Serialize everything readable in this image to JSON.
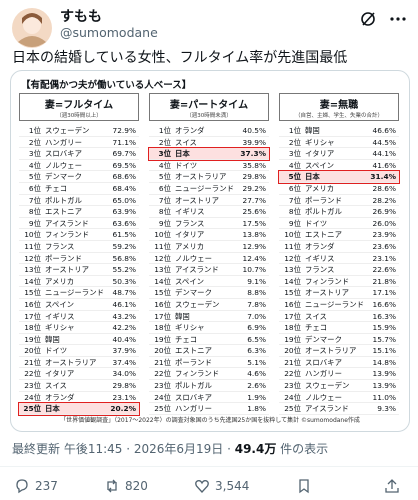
{
  "author": {
    "name": "すもも",
    "handle": "@sumomodane"
  },
  "tweet": {
    "text": "日本の結婚している女性、フルタイム率が先進国最低"
  },
  "image": {
    "basis": "【有配偶かつ夫が働いている人ベース】",
    "tables": [
      {
        "title": "妻=フルタイム",
        "subtitle": "（週30時間以上）",
        "rows": [
          {
            "rank": "1位",
            "country": "スウェーデン",
            "value": "72.9%"
          },
          {
            "rank": "2位",
            "country": "ハンガリー",
            "value": "71.1%"
          },
          {
            "rank": "3位",
            "country": "スロバキア",
            "value": "69.7%"
          },
          {
            "rank": "4位",
            "country": "ノルウェー",
            "value": "69.5%"
          },
          {
            "rank": "5位",
            "country": "デンマーク",
            "value": "68.6%"
          },
          {
            "rank": "6位",
            "country": "チェコ",
            "value": "68.4%"
          },
          {
            "rank": "7位",
            "country": "ポルトガル",
            "value": "65.0%"
          },
          {
            "rank": "8位",
            "country": "エストニア",
            "value": "63.9%"
          },
          {
            "rank": "9位",
            "country": "アイスランド",
            "value": "63.6%"
          },
          {
            "rank": "10位",
            "country": "フィンランド",
            "value": "61.5%"
          },
          {
            "rank": "11位",
            "country": "フランス",
            "value": "59.2%"
          },
          {
            "rank": "12位",
            "country": "ポーランド",
            "value": "56.8%"
          },
          {
            "rank": "13位",
            "country": "オーストリア",
            "value": "55.2%"
          },
          {
            "rank": "14位",
            "country": "アメリカ",
            "value": "50.3%"
          },
          {
            "rank": "15位",
            "country": "ニュージーランド",
            "value": "48.7%"
          },
          {
            "rank": "16位",
            "country": "スペイン",
            "value": "46.1%"
          },
          {
            "rank": "17位",
            "country": "イギリス",
            "value": "43.2%"
          },
          {
            "rank": "18位",
            "country": "ギリシャ",
            "value": "42.2%"
          },
          {
            "rank": "19位",
            "country": "韓国",
            "value": "40.4%"
          },
          {
            "rank": "20位",
            "country": "ドイツ",
            "value": "37.9%"
          },
          {
            "rank": "21位",
            "country": "オーストラリア",
            "value": "37.4%"
          },
          {
            "rank": "22位",
            "country": "イタリア",
            "value": "34.0%"
          },
          {
            "rank": "23位",
            "country": "スイス",
            "value": "29.8%"
          },
          {
            "rank": "24位",
            "country": "オランダ",
            "value": "23.1%"
          },
          {
            "rank": "25位",
            "country": "日本",
            "value": "20.2%",
            "highlight": true
          }
        ]
      },
      {
        "title": "妻=パートタイム",
        "subtitle": "（週30時間未満）",
        "rows": [
          {
            "rank": "1位",
            "country": "オランダ",
            "value": "40.5%"
          },
          {
            "rank": "2位",
            "country": "スイス",
            "value": "39.9%"
          },
          {
            "rank": "3位",
            "country": "日本",
            "value": "37.3%",
            "highlight": true
          },
          {
            "rank": "4位",
            "country": "ドイツ",
            "value": "35.8%"
          },
          {
            "rank": "5位",
            "country": "オーストラリア",
            "value": "29.8%"
          },
          {
            "rank": "6位",
            "country": "ニュージーランド",
            "value": "29.2%"
          },
          {
            "rank": "7位",
            "country": "オーストリア",
            "value": "27.7%"
          },
          {
            "rank": "8位",
            "country": "イギリス",
            "value": "25.6%"
          },
          {
            "rank": "9位",
            "country": "フランス",
            "value": "17.5%"
          },
          {
            "rank": "10位",
            "country": "イタリア",
            "value": "13.8%"
          },
          {
            "rank": "11位",
            "country": "アメリカ",
            "value": "12.9%"
          },
          {
            "rank": "12位",
            "country": "ノルウェー",
            "value": "12.4%"
          },
          {
            "rank": "13位",
            "country": "アイスランド",
            "value": "10.7%"
          },
          {
            "rank": "14位",
            "country": "スペイン",
            "value": "9.1%"
          },
          {
            "rank": "15位",
            "country": "デンマーク",
            "value": "8.8%"
          },
          {
            "rank": "16位",
            "country": "スウェーデン",
            "value": "7.8%"
          },
          {
            "rank": "17位",
            "country": "韓国",
            "value": "7.0%"
          },
          {
            "rank": "18位",
            "country": "ギリシャ",
            "value": "6.9%"
          },
          {
            "rank": "19位",
            "country": "チェコ",
            "value": "6.5%"
          },
          {
            "rank": "20位",
            "country": "エストニア",
            "value": "6.3%"
          },
          {
            "rank": "21位",
            "country": "ポーランド",
            "value": "5.1%"
          },
          {
            "rank": "22位",
            "country": "フィンランド",
            "value": "4.6%"
          },
          {
            "rank": "23位",
            "country": "ポルトガル",
            "value": "2.6%"
          },
          {
            "rank": "24位",
            "country": "スロバキア",
            "value": "1.9%"
          },
          {
            "rank": "25位",
            "country": "ハンガリー",
            "value": "1.8%"
          }
        ]
      },
      {
        "title": "妻=無職",
        "subtitle": "（自営、主婦、学生、失業の合計）",
        "rows": [
          {
            "rank": "1位",
            "country": "韓国",
            "value": "46.6%"
          },
          {
            "rank": "2位",
            "country": "ギリシャ",
            "value": "44.5%"
          },
          {
            "rank": "3位",
            "country": "イタリア",
            "value": "44.1%"
          },
          {
            "rank": "4位",
            "country": "スペイン",
            "value": "41.6%"
          },
          {
            "rank": "5位",
            "country": "日本",
            "value": "31.4%",
            "highlight": true
          },
          {
            "rank": "6位",
            "country": "アメリカ",
            "value": "28.6%"
          },
          {
            "rank": "7位",
            "country": "ポーランド",
            "value": "28.2%"
          },
          {
            "rank": "8位",
            "country": "ポルトガル",
            "value": "26.9%"
          },
          {
            "rank": "9位",
            "country": "ドイツ",
            "value": "26.0%"
          },
          {
            "rank": "10位",
            "country": "エストニア",
            "value": "23.9%"
          },
          {
            "rank": "11位",
            "country": "オランダ",
            "value": "23.6%"
          },
          {
            "rank": "12位",
            "country": "イギリス",
            "value": "23.1%"
          },
          {
            "rank": "13位",
            "country": "フランス",
            "value": "22.6%"
          },
          {
            "rank": "14位",
            "country": "フィンランド",
            "value": "21.8%"
          },
          {
            "rank": "15位",
            "country": "オーストリア",
            "value": "17.1%"
          },
          {
            "rank": "16位",
            "country": "ニュージーランド",
            "value": "16.6%"
          },
          {
            "rank": "17位",
            "country": "スイス",
            "value": "16.3%"
          },
          {
            "rank": "18位",
            "country": "チェコ",
            "value": "15.9%"
          },
          {
            "rank": "19位",
            "country": "デンマーク",
            "value": "15.7%"
          },
          {
            "rank": "20位",
            "country": "オーストラリア",
            "value": "15.1%"
          },
          {
            "rank": "21位",
            "country": "スロバキア",
            "value": "14.8%"
          },
          {
            "rank": "22位",
            "country": "ハンガリー",
            "value": "13.9%"
          },
          {
            "rank": "23位",
            "country": "スウェーデン",
            "value": "13.9%"
          },
          {
            "rank": "24位",
            "country": "ノルウェー",
            "value": "11.0%"
          },
          {
            "rank": "25位",
            "country": "アイスランド",
            "value": "9.3%"
          }
        ]
      }
    ],
    "source": "「世界価値観調査」（2017〜2022年）の調査対象国のうち先進国25か国を抜粋して集計 ©sumomodane作成"
  },
  "meta": {
    "updated": "最終更新 午後11:45 · 2026年6月19日 · ",
    "views": "49.4万",
    "views_suffix": " 件の表示"
  },
  "actions": {
    "replies": "237",
    "reposts": "820",
    "likes": "3,544"
  }
}
